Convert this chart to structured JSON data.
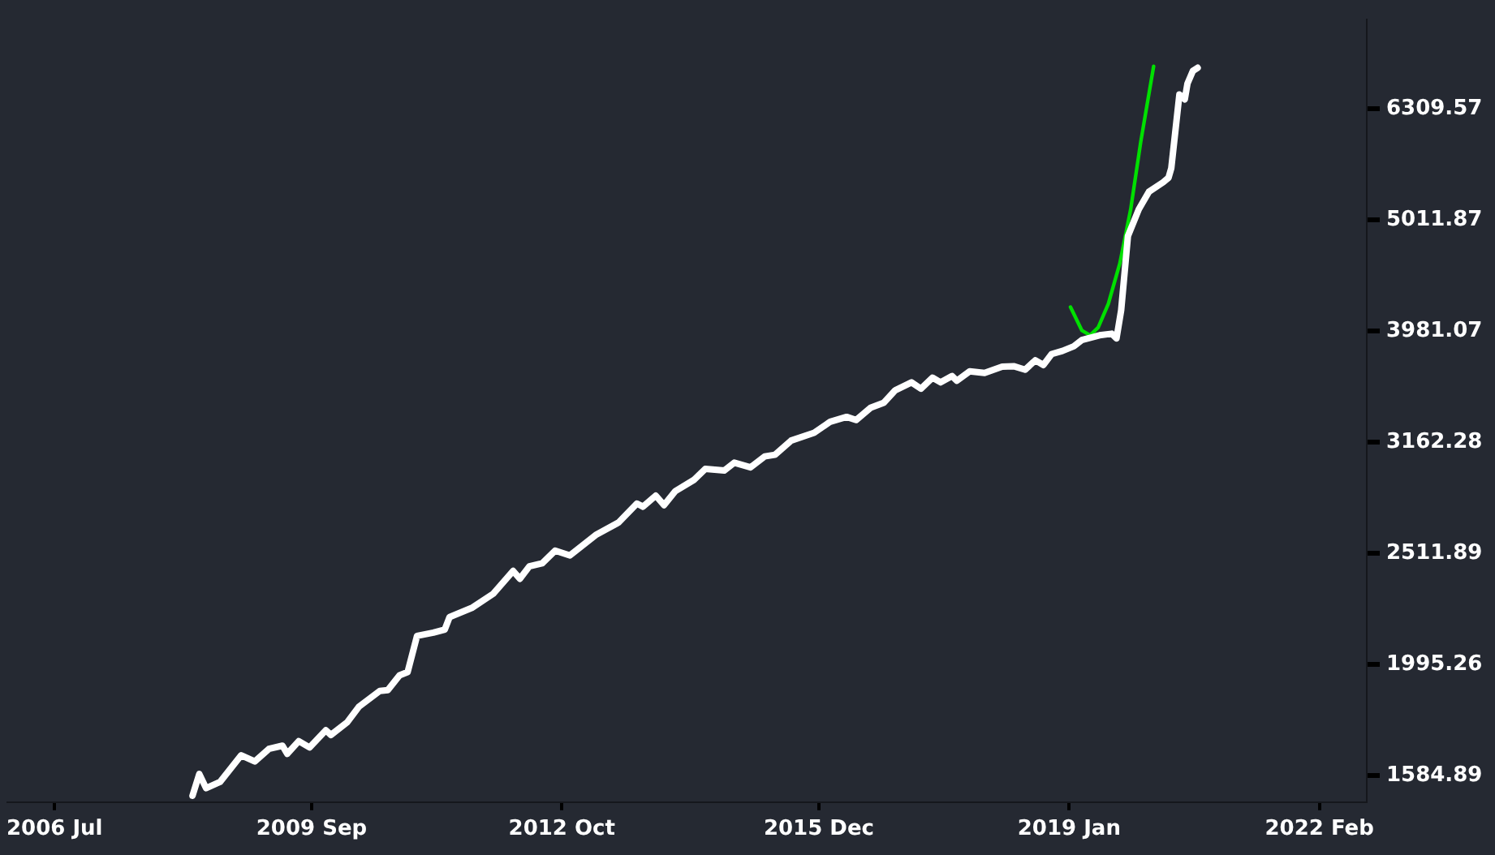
{
  "chart_data": {
    "type": "line",
    "log": "y",
    "grid": false,
    "legend": false,
    "marker": "none",
    "line_style": "solid",
    "xlim": [
      "2005-12-01",
      "2022-09-01"
    ],
    "xticks": [
      {
        "value": "2006-07-01",
        "label": "2006 Jul"
      },
      {
        "value": "2009-09-01",
        "label": "2009 Sep"
      },
      {
        "value": "2012-10-01",
        "label": "2012 Oct"
      },
      {
        "value": "2015-12-01",
        "label": "2015 Dec"
      },
      {
        "value": "2019-01-01",
        "label": "2019 Jan"
      },
      {
        "value": "2022-02-01",
        "label": "2022 Feb"
      }
    ],
    "ylim": [
      1500,
      7600
    ],
    "yticks": [
      1584.89,
      1995.26,
      2511.89,
      3162.28,
      3981.07,
      5011.87,
      6309.57
    ],
    "series": [
      {
        "color": "#ffffff",
        "x": [
          "2008-03-13",
          "2008-04-13",
          "2008-05-13",
          "2008-07-15",
          "2008-10-19",
          "2008-12-19",
          "2009-02-22",
          "2009-04-22",
          "2009-05-13",
          "2009-07-04",
          "2009-08-22",
          "2009-11-04",
          "2009-11-27",
          "2010-02-09",
          "2010-04-01",
          "2010-07-04",
          "2010-08-09",
          "2010-10-01",
          "2010-11-07",
          "2010-12-19",
          "2011-03-01",
          "2011-04-22",
          "2011-05-13",
          "2011-08-25",
          "2011-11-28",
          "2012-02-25",
          "2012-03-25",
          "2012-05-07",
          "2012-07-04",
          "2012-09-01",
          "2012-11-07",
          "2013-03-01",
          "2013-06-13",
          "2013-09-04",
          "2013-10-01",
          "2013-11-28",
          "2014-01-04",
          "2014-02-25",
          "2014-05-16",
          "2014-07-07",
          "2014-10-01",
          "2014-11-16",
          "2015-01-28",
          "2015-04-01",
          "2015-05-16",
          "2015-07-28",
          "2015-11-10",
          "2016-01-22",
          "2016-04-04",
          "2016-05-16",
          "2016-07-22",
          "2016-09-19",
          "2016-11-10",
          "2017-01-22",
          "2017-03-04",
          "2017-04-25",
          "2017-06-01",
          "2017-07-22",
          "2017-08-13",
          "2017-10-10",
          "2017-12-16",
          "2018-03-04",
          "2018-04-25",
          "2018-06-16",
          "2018-08-01",
          "2018-09-07",
          "2018-10-13",
          "2018-12-01",
          "2019-01-22",
          "2019-02-28",
          "2019-05-16",
          "2019-07-10",
          "2019-08-01",
          "2019-08-22",
          "2019-09-22",
          "2019-11-10",
          "2019-12-25",
          "2020-02-28",
          "2020-03-22",
          "2020-04-04",
          "2020-05-10",
          "2020-06-04",
          "2020-06-16",
          "2020-07-10",
          "2020-08-01"
        ],
        "values": [
          1520,
          1590,
          1544,
          1564,
          1653,
          1632,
          1675,
          1686,
          1658,
          1702,
          1680,
          1741,
          1724,
          1770,
          1828,
          1889,
          1892,
          1951,
          1964,
          2117,
          2131,
          2145,
          2201,
          2245,
          2311,
          2422,
          2383,
          2445,
          2461,
          2526,
          2501,
          2609,
          2678,
          2785,
          2767,
          2831,
          2776,
          2858,
          2924,
          2992,
          2982,
          3031,
          3002,
          3071,
          3081,
          3173,
          3225,
          3300,
          3333,
          3311,
          3398,
          3432,
          3522,
          3580,
          3533,
          3615,
          3580,
          3627,
          3592,
          3663,
          3651,
          3699,
          3702,
          3675,
          3748,
          3711,
          3796,
          3821,
          3858,
          3909,
          3947,
          3960,
          3922,
          4158,
          4848,
          5125,
          5314,
          5419,
          5471,
          5580,
          6500,
          6437,
          6650,
          6827,
          6871
        ]
      },
      {
        "color": "#00e000",
        "x": [
          "2019-01-07",
          "2019-02-28",
          "2019-04-04",
          "2019-05-10",
          "2019-06-25",
          "2019-08-16",
          "2019-10-04",
          "2019-11-19",
          "2020-01-16"
        ],
        "values": [
          4185,
          3986,
          3947,
          4012,
          4212,
          4582,
          5125,
          5897,
          6893
        ]
      }
    ]
  }
}
